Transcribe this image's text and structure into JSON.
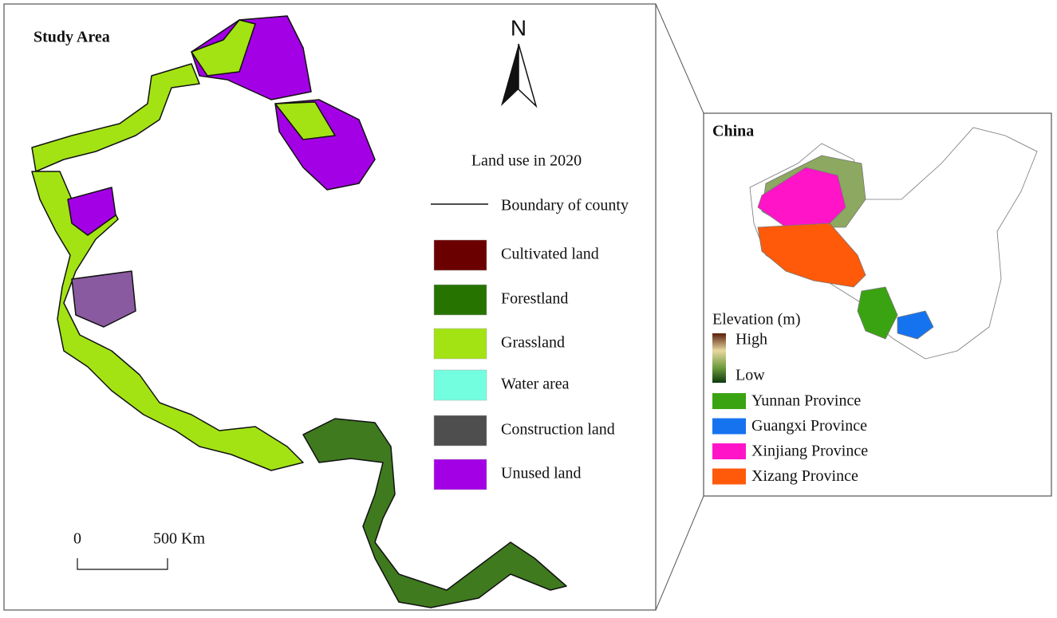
{
  "study_area": {
    "title": "Study Area",
    "north": "N",
    "legend_title": "Land use in 2020",
    "boundary": "Boundary of county",
    "land_use": [
      {
        "label": "Cultivated land",
        "color": "#6b0000"
      },
      {
        "label": "Forestland",
        "color": "#267300"
      },
      {
        "label": "Grassland",
        "color": "#a3e314"
      },
      {
        "label": "Water area",
        "color": "#73ffdf"
      },
      {
        "label": "Construction land",
        "color": "#4e4e4e"
      },
      {
        "label": "Unused land",
        "color": "#a300e6"
      }
    ],
    "scale": {
      "start": "0",
      "end": "500 Km"
    }
  },
  "inset": {
    "title": "China",
    "elevation_title": "Elevation (m)",
    "high": "High",
    "low": "Low",
    "provinces": [
      {
        "label": "Yunnan Province",
        "color": "#3aa312"
      },
      {
        "label": "Guangxi Province",
        "color": "#1673f0"
      },
      {
        "label": "Xinjiang Province",
        "color": "#ff14c8"
      },
      {
        "label": "Xizang Province",
        "color": "#ff5a0a"
      }
    ]
  }
}
